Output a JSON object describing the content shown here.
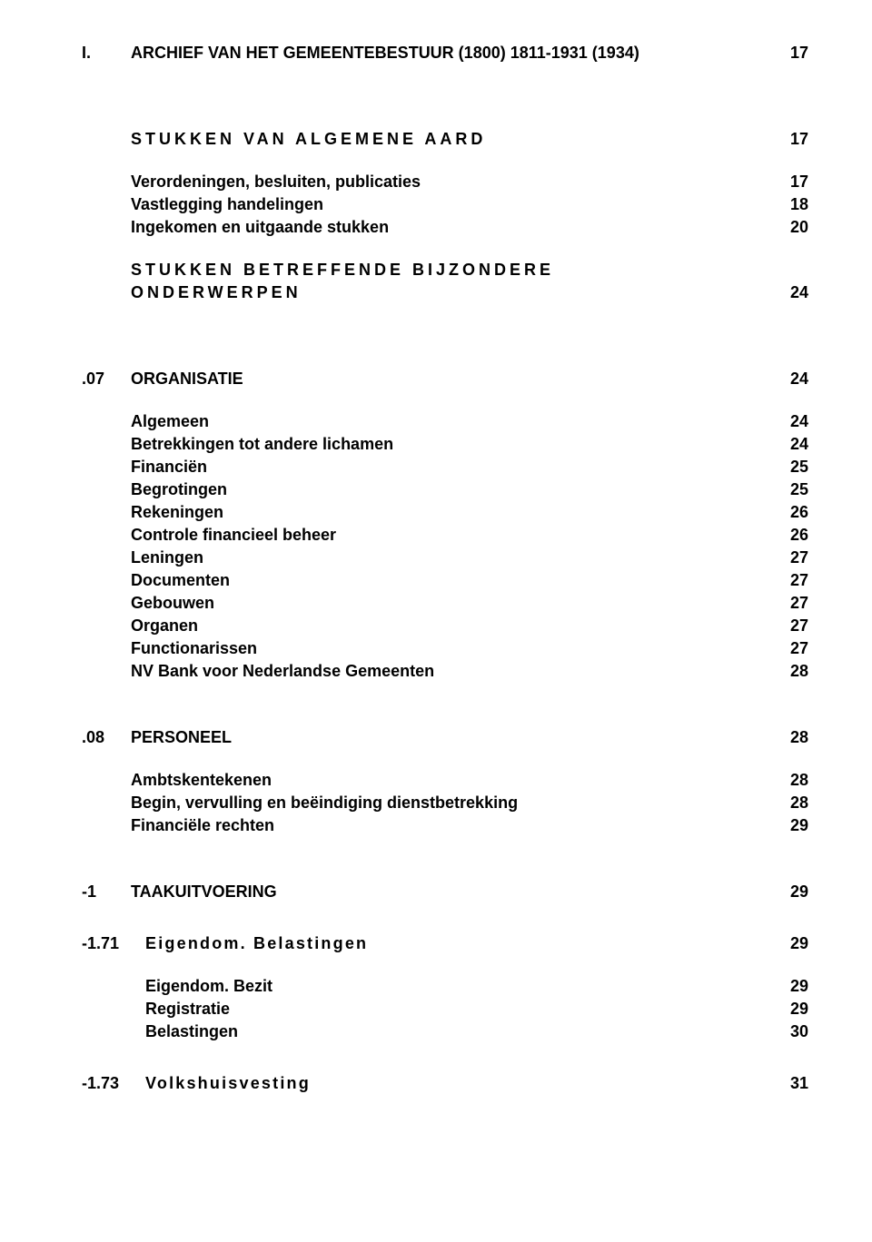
{
  "title": {
    "code": "I.",
    "text": "ARCHIEF VAN HET GEMEENTEBESTUUR (1800) 1811-1931 (1934)",
    "page": "17"
  },
  "block1_heading": {
    "text": "STUKKEN VAN ALGEMENE AARD",
    "page": "17"
  },
  "block1_items": [
    {
      "text": "Verordeningen, besluiten, publicaties",
      "page": "17"
    },
    {
      "text": "Vastlegging handelingen",
      "page": "18"
    },
    {
      "text": "Ingekomen en uitgaande stukken",
      "page": "20"
    }
  ],
  "block2_heading_line1": "STUKKEN BETREFFENDE BIJZONDERE",
  "block2_heading_line2": "ONDERWERPEN",
  "block2_page": "24",
  "sec07": {
    "code": ".07",
    "text": "ORGANISATIE",
    "page": "24"
  },
  "sec07_items": [
    {
      "text": "Algemeen",
      "page": "24"
    },
    {
      "text": "Betrekkingen tot andere lichamen",
      "page": "24"
    },
    {
      "text": "Financiën",
      "page": "25"
    },
    {
      "text": "Begrotingen",
      "page": "25"
    },
    {
      "text": "Rekeningen",
      "page": "26"
    },
    {
      "text": "Controle financieel beheer",
      "page": "26"
    },
    {
      "text": "Leningen",
      "page": "27"
    },
    {
      "text": "Documenten",
      "page": "27"
    },
    {
      "text": "Gebouwen",
      "page": "27"
    },
    {
      "text": "Organen",
      "page": "27"
    },
    {
      "text": "Functionarissen",
      "page": "27"
    },
    {
      "text": "NV Bank voor Nederlandse Gemeenten",
      "page": "28"
    }
  ],
  "sec08": {
    "code": ".08",
    "text": "PERSONEEL",
    "page": "28"
  },
  "sec08_items": [
    {
      "text": "Ambtskentekenen",
      "page": "28"
    },
    {
      "text": "Begin, vervulling en beëindiging dienstbetrekking",
      "page": "28"
    },
    {
      "text": "Financiële rechten",
      "page": "29"
    }
  ],
  "sec_taak": {
    "code": "-1",
    "text": "TAAKUITVOERING",
    "page": "29"
  },
  "sec171": {
    "code": "-1.71",
    "text": "Eigendom. Belastingen",
    "page": "29"
  },
  "sec171_items": [
    {
      "text": "Eigendom. Bezit",
      "page": "29"
    },
    {
      "text": "Registratie",
      "page": "29"
    },
    {
      "text": "Belastingen",
      "page": "30"
    }
  ],
  "sec173": {
    "code": "-1.73",
    "text": "Volkshuisvesting",
    "page": "31"
  }
}
